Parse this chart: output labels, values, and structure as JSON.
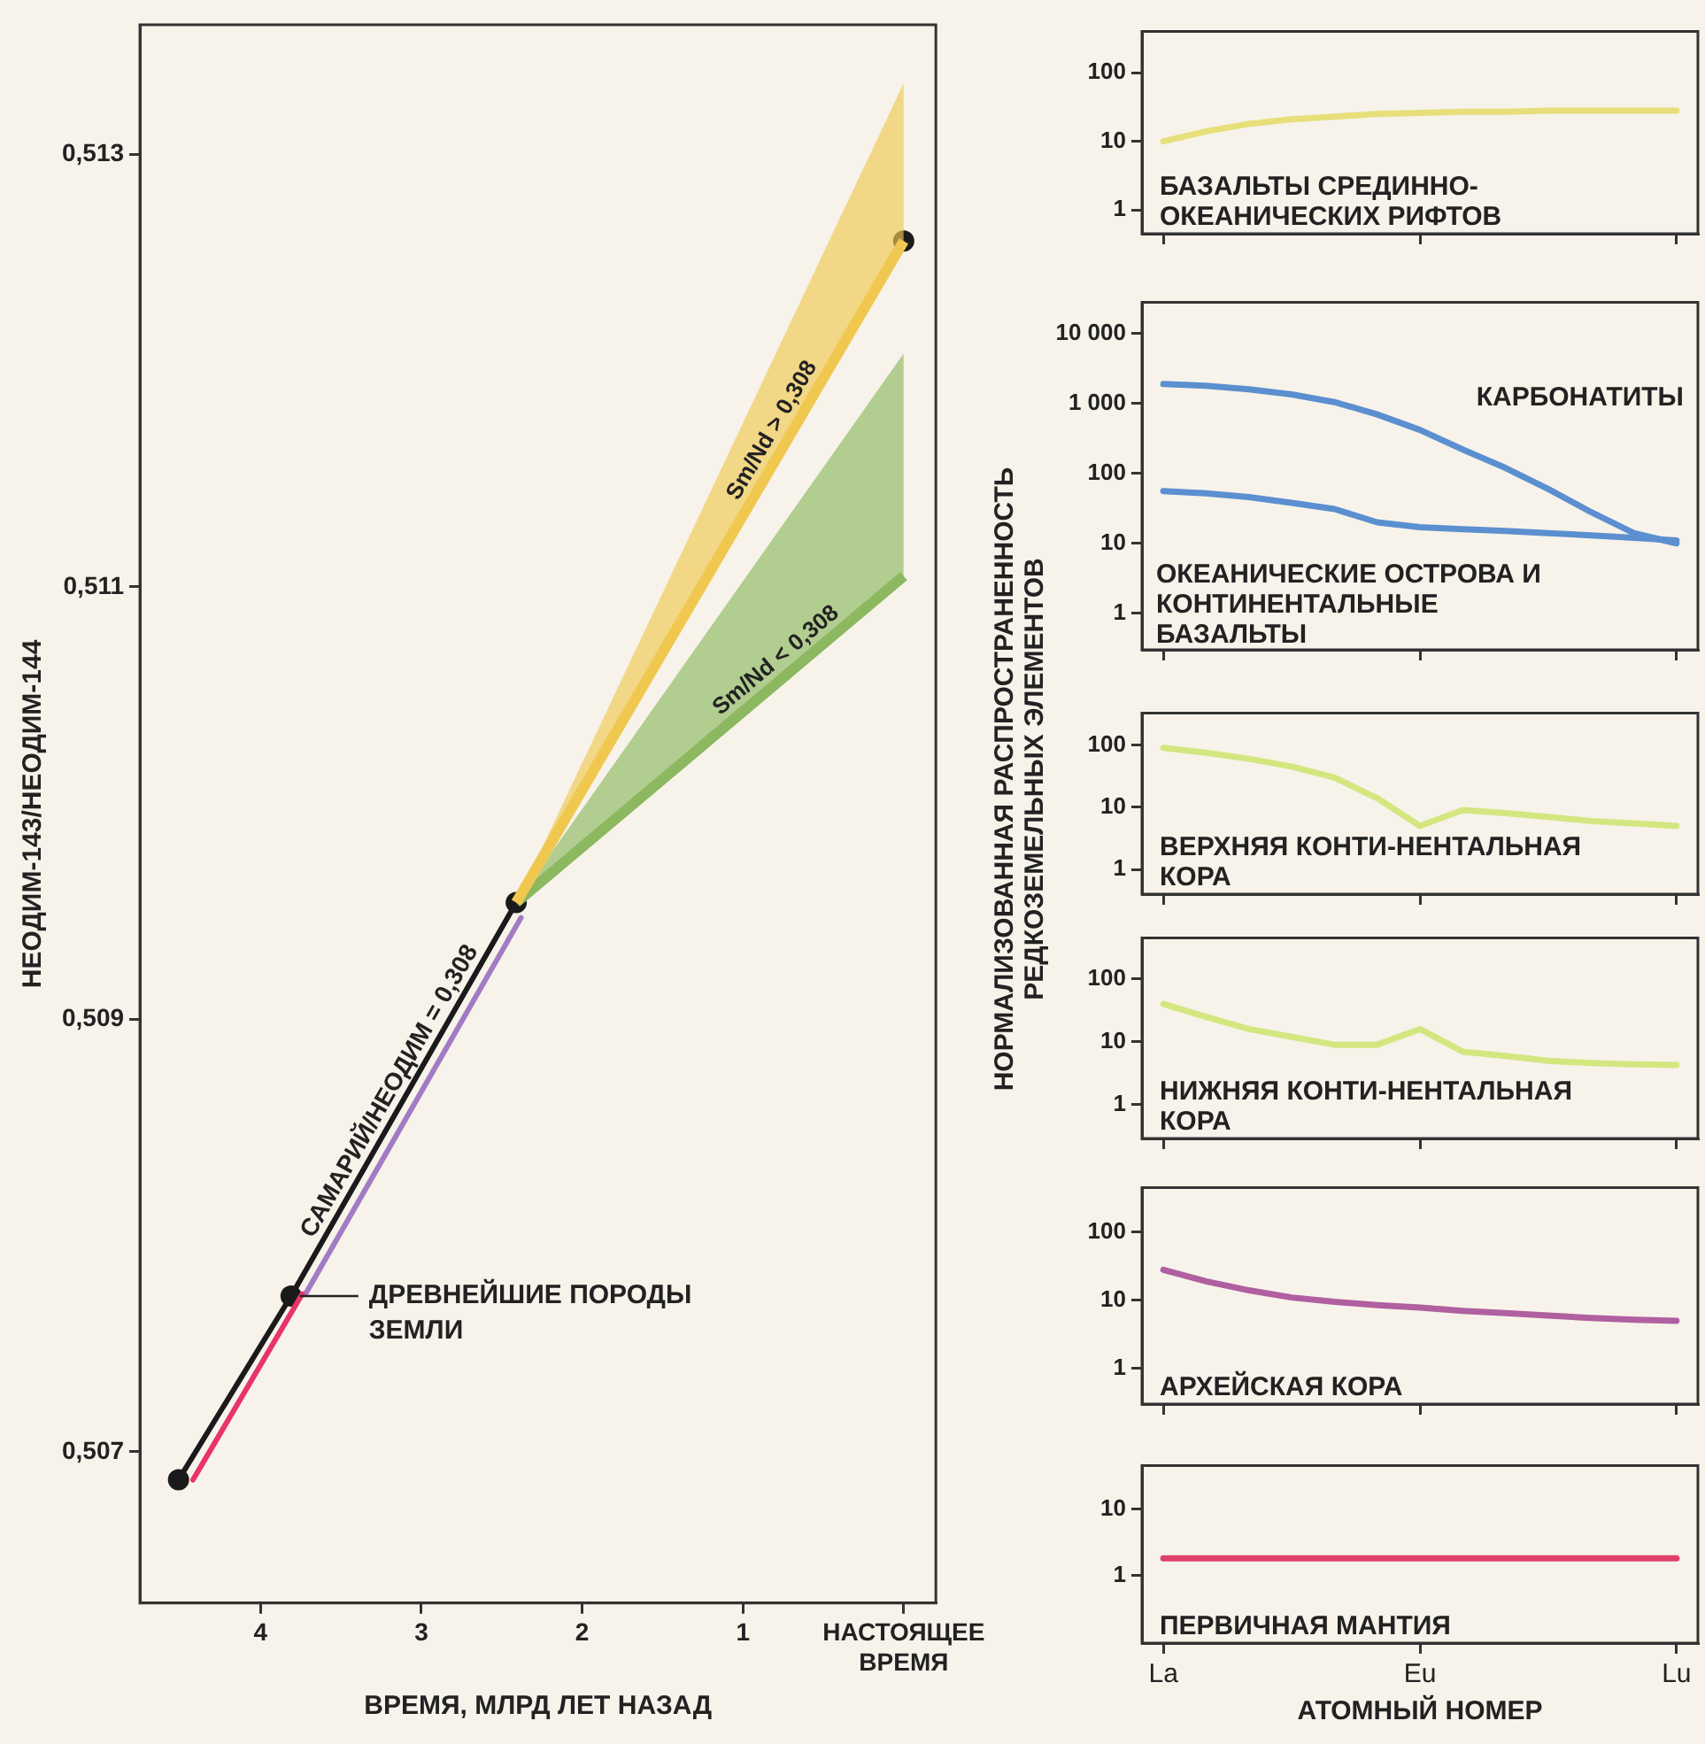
{
  "chart_data": [
    {
      "type": "line",
      "xlabel": "ВРЕМЯ, МЛРД ЛЕТ НАЗАД",
      "ylabel": "НЕОДИМ-143/НЕОДИМ-144",
      "xlim": [
        4.75,
        -0.2
      ],
      "xticks": [
        4,
        3,
        2,
        1,
        {
          "value": 0,
          "label": "НАСТОЯЩЕЕ ВРЕМЯ"
        }
      ],
      "ylim": [
        0.5063,
        0.5136
      ],
      "yticks": [
        {
          "value": 0.507,
          "label": "0,507"
        },
        {
          "value": 0.509,
          "label": "0,509"
        },
        {
          "value": 0.511,
          "label": "0,511"
        },
        {
          "value": 0.513,
          "label": "0,513"
        }
      ],
      "series": [
        {
          "name": "Sm/Nd > 0,308",
          "color": "#f0c850",
          "x": [
            2.41,
            0
          ],
          "values": [
            0.50954,
            0.5126
          ],
          "lower": [
            0.50954,
            0.5126
          ],
          "upper": [
            0.50954,
            0.51333
          ]
        },
        {
          "name": "Sm/Nd < 0,308",
          "color": "#8cb860",
          "x": [
            2.41,
            0
          ],
          "values": [
            0.50954,
            0.51105
          ],
          "lower": [
            0.50954,
            0.51105
          ],
          "upper": [
            0.50954,
            0.51208
          ]
        },
        {
          "color": "#e8336b",
          "x": [
            4.42,
            3.74
          ],
          "values": [
            0.50687,
            0.50773
          ]
        },
        {
          "color": "#a37bc4",
          "x": [
            3.72,
            2.38
          ],
          "values": [
            0.50773,
            0.50947
          ]
        },
        {
          "name": "САМАРИЙ/НЕОДИМ = 0,308",
          "color": "#1a1a1a",
          "marker": "circle",
          "x": [
            4.51,
            3.81,
            2.41,
            0
          ],
          "values": [
            0.50687,
            0.50772,
            0.50954,
            0.5126
          ]
        }
      ],
      "annotations": [
        {
          "text": "ДРЕВНЕЙШИЕ ПОРОДЫ ЗЕМЛИ",
          "x": 3.81,
          "y": 0.50772
        }
      ]
    },
    {
      "type": "line",
      "log": true,
      "categories": [
        null,
        null,
        null,
        null,
        null,
        null,
        null,
        null,
        null,
        null,
        null,
        null,
        null
      ],
      "ylim": [
        0.45,
        400
      ],
      "yticks": [
        1,
        10,
        100
      ],
      "series": [
        {
          "color": "#e6df7a",
          "values": [
            10,
            14,
            18,
            21,
            23,
            25,
            26,
            27,
            27,
            28,
            28,
            28,
            28
          ]
        }
      ],
      "annotations": [
        "БАЗАЛЬТЫ СРЕДИННО-ОКЕАНИЧЕСКИХ РИФТОВ"
      ]
    },
    {
      "type": "line",
      "log": true,
      "categories": [
        null,
        null,
        null,
        null,
        null,
        null,
        null,
        null,
        null,
        null,
        null,
        null,
        null
      ],
      "ylim": [
        0.32,
        28000
      ],
      "yticks": [
        1,
        10,
        100,
        {
          "value": 1000,
          "label": "1 000"
        },
        {
          "value": 10000,
          "label": "10 000"
        }
      ],
      "series": [
        {
          "name": "КАРБОНАТИТЫ",
          "color": "#5b8fd0",
          "values": [
            1900,
            1800,
            1600,
            1350,
            1050,
            700,
            420,
            220,
            120,
            60,
            28,
            14,
            10
          ]
        },
        {
          "name": "ОКЕАНИЧЕСКИЕ ОСТРОВА И КОНТИНЕНТАЛЬНЫЕ БАЗАЛЬТЫ",
          "color": "#5b8fd0",
          "values": [
            56,
            52,
            46,
            38,
            31,
            20,
            17,
            16,
            15,
            14,
            13,
            12,
            11
          ]
        }
      ]
    },
    {
      "type": "line",
      "log": true,
      "categories": [
        null,
        null,
        null,
        null,
        null,
        null,
        null,
        null,
        null,
        null,
        null,
        null,
        null
      ],
      "ylim": [
        0.4,
        325
      ],
      "yticks": [
        1,
        10,
        100
      ],
      "ylabel": "НОРМАЛИЗОВАННАЯ РАСПРОСТРАНЕННОСТЬ РЕДКОЗЕМЕЛЬНЫХ ЭЛЕМЕНТОВ",
      "series": [
        {
          "color": "#d4e67f",
          "values": [
            90,
            75,
            60,
            45,
            30,
            14,
            5,
            9,
            8,
            7,
            6,
            5.5,
            5
          ]
        }
      ],
      "annotations": [
        "ВЕРХНЯЯ КОНТИ-НЕНТАЛЬНАЯ КОРА"
      ]
    },
    {
      "type": "line",
      "log": true,
      "categories": [
        null,
        null,
        null,
        null,
        null,
        null,
        null,
        null,
        null,
        null,
        null,
        null,
        null
      ],
      "ylim": [
        0.29,
        450
      ],
      "yticks": [
        1,
        10,
        100
      ],
      "series": [
        {
          "color": "#d4e67f",
          "values": [
            40,
            25,
            16,
            12,
            9,
            9,
            16,
            7,
            6,
            5,
            4.6,
            4.4,
            4.3
          ]
        }
      ],
      "annotations": [
        "НИЖНЯЯ КОНТИ-НЕНТАЛЬНАЯ КОРА"
      ]
    },
    {
      "type": "line",
      "log": true,
      "categories": [
        null,
        null,
        null,
        null,
        null,
        null,
        null,
        null,
        null,
        null,
        null,
        null,
        null
      ],
      "ylim": [
        0.32,
        450
      ],
      "yticks": [
        1,
        10,
        100
      ],
      "series": [
        {
          "color": "#b05fa0",
          "values": [
            28,
            19,
            14,
            11,
            9.5,
            8.5,
            7.8,
            7,
            6.5,
            6,
            5.5,
            5.2,
            5
          ]
        }
      ],
      "annotations": [
        "АРХЕЙСКАЯ КОРА"
      ]
    },
    {
      "type": "line",
      "log": true,
      "categories": [
        "La",
        null,
        null,
        null,
        null,
        null,
        "Eu",
        null,
        null,
        null,
        null,
        null,
        "Lu"
      ],
      "ylim": [
        0.095,
        45
      ],
      "yticks": [
        1,
        10
      ],
      "xlabel": "АТОМНЫЙ НОМЕР",
      "series": [
        {
          "color": "#e0406a",
          "values": [
            1.8,
            1.8,
            1.8,
            1.8,
            1.8,
            1.8,
            1.8,
            1.8,
            1.8,
            1.8,
            1.8,
            1.8,
            1.8
          ]
        }
      ],
      "annotations": [
        "ПЕРВИЧНАЯ МАНТИЯ"
      ]
    }
  ]
}
